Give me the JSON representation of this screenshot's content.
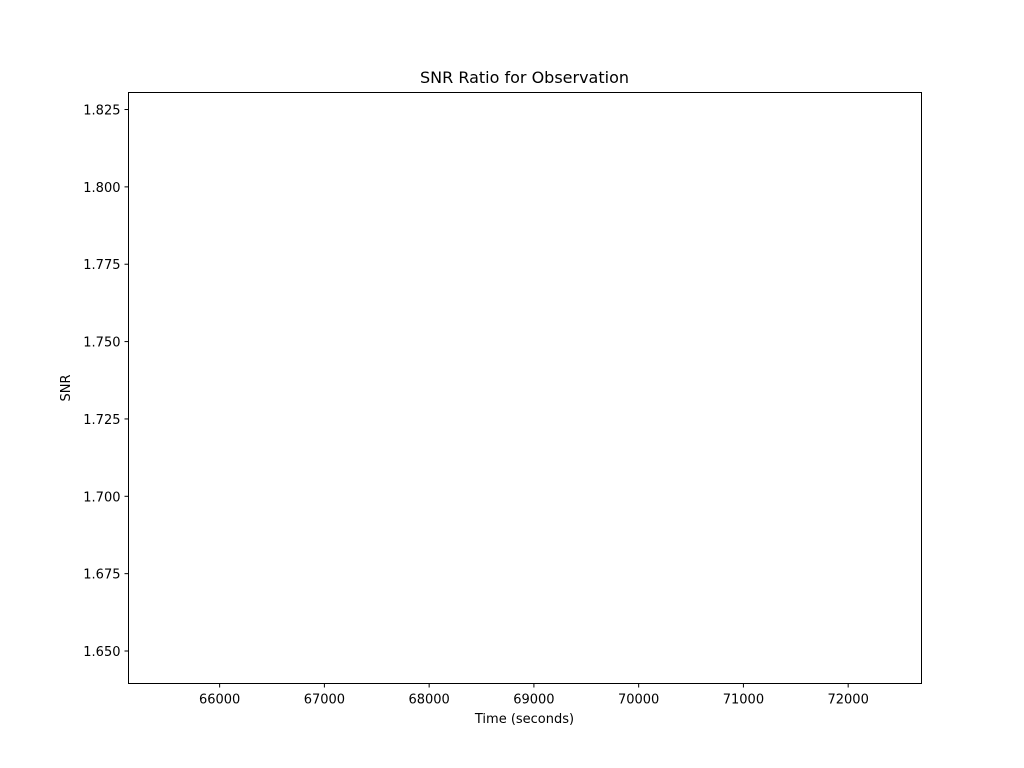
{
  "chart_data": {
    "type": "line",
    "title": "SNR Ratio for Observation",
    "xlabel": "Time (seconds)",
    "ylabel": "SNR",
    "xlim": [
      65130,
      72700
    ],
    "ylim": [
      1.6395,
      1.8305
    ],
    "x_ticks": [
      66000,
      67000,
      68000,
      69000,
      70000,
      71000,
      72000
    ],
    "x_tick_labels": [
      "66000",
      "67000",
      "68000",
      "69000",
      "70000",
      "71000",
      "72000"
    ],
    "y_ticks": [
      1.65,
      1.675,
      1.7,
      1.725,
      1.75,
      1.775,
      1.8,
      1.825
    ],
    "y_tick_labels": [
      "1.650",
      "1.675",
      "1.700",
      "1.725",
      "1.750",
      "1.775",
      "1.800",
      "1.825"
    ],
    "series": [],
    "grid": false,
    "legend": "none"
  }
}
